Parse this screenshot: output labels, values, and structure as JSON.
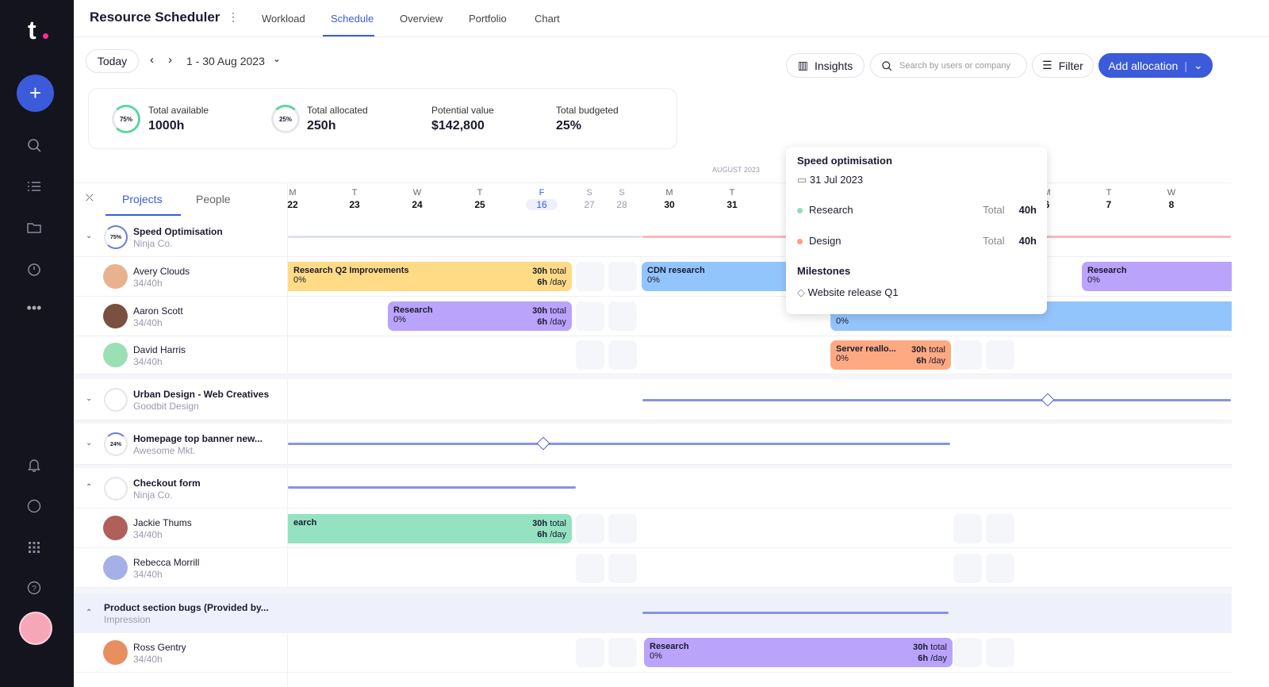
{
  "app": {
    "logo": "t",
    "title": "Resource Scheduler"
  },
  "tabs": [
    {
      "label": "Workload"
    },
    {
      "label": "Schedule",
      "active": true
    },
    {
      "label": "Overview"
    },
    {
      "label": "Portfolio"
    },
    {
      "label": "Chart"
    }
  ],
  "toolbar": {
    "today": "Today",
    "date_range": "1 - 30 Aug 2023",
    "insights": "Insights",
    "search_placeholder": "Search by users or company",
    "filter": "Filter",
    "add_allocation": "Add allocation"
  },
  "stats": [
    {
      "label": "Total available",
      "value": "1000h",
      "ring": "75%"
    },
    {
      "label": "Total allocated",
      "value": "250h",
      "ring": "25%"
    },
    {
      "label": "Potential value",
      "value": "$142,800"
    },
    {
      "label": "Total budgeted",
      "value": "25%"
    }
  ],
  "view_tabs": {
    "projects": "Projects",
    "people": "People"
  },
  "month_label": "AUGUST 2023",
  "days": [
    {
      "d": "M",
      "n": "22"
    },
    {
      "d": "T",
      "n": "23"
    },
    {
      "d": "W",
      "n": "24"
    },
    {
      "d": "T",
      "n": "25"
    },
    {
      "d": "F",
      "n": "16",
      "today": true
    },
    {
      "d": "S",
      "n": "27"
    },
    {
      "d": "S",
      "n": "28"
    },
    {
      "d": "M",
      "n": "30"
    },
    {
      "d": "T",
      "n": "31"
    },
    {
      "d": "M",
      "n": "6"
    },
    {
      "d": "T",
      "n": "7"
    },
    {
      "d": "W",
      "n": "8"
    }
  ],
  "projects": [
    {
      "name": "Speed Optimisation",
      "client": "Ninja Co.",
      "ring": "75%"
    },
    {
      "name": "Urban Design - Web Creatives",
      "client": "Goodbit Design"
    },
    {
      "name": "Homepage top banner new...",
      "client": "Awesome Mkt.",
      "ring": "24%"
    },
    {
      "name": "Checkout form",
      "client": "Ninja Co."
    },
    {
      "name": "Product section bugs (Provided by...",
      "client": "Impression"
    }
  ],
  "people": [
    {
      "name": "Avery Clouds",
      "hours": "34/40h"
    },
    {
      "name": "Aaron Scott",
      "hours": "34/40h"
    },
    {
      "name": "David Harris",
      "hours": "34/40h"
    },
    {
      "name": "Jackie Thums",
      "hours": "34/40h"
    },
    {
      "name": "Rebecca Morrill",
      "hours": "34/40h"
    },
    {
      "name": "Ross Gentry",
      "hours": "34/40h"
    }
  ],
  "bars": {
    "rq2": {
      "title": "Research Q2 Improvements",
      "pct": "0%",
      "total": "30h",
      "total_unit": " total",
      "day": "6h",
      "day_unit": " /day"
    },
    "cdn": {
      "title": "CDN research",
      "pct": "0%"
    },
    "res_avery": {
      "title": "Research",
      "pct": "0%"
    },
    "res_aaron": {
      "title": "Research",
      "pct": "0%",
      "total": "30h",
      "total_unit": " total",
      "day": "6h",
      "day_unit": " /day"
    },
    "blue_aaron": {
      "pct": "0%"
    },
    "server": {
      "title": "Server reallo...",
      "pct": "0%",
      "total": "30h",
      "total_unit": " total",
      "day": "6h",
      "day_unit": " /day"
    },
    "jackie": {
      "title": "earch",
      "total": "30h",
      "total_unit": " total",
      "day": "6h",
      "day_unit": " /day"
    },
    "ross": {
      "title": "Research",
      "pct": "0%",
      "total": "30h",
      "total_unit": " total",
      "day": "6h",
      "day_unit": " /day"
    }
  },
  "popup": {
    "title": "Speed optimisation",
    "date": "31 Jul 2023",
    "items": [
      {
        "name": "Research",
        "label": "Total",
        "value": "40h",
        "color": "#8fdcb8"
      },
      {
        "name": "Design",
        "label": "Total",
        "value": "40h",
        "color": "#ff9f7a"
      }
    ],
    "milestones_title": "Milestones",
    "milestone": "Website release Q1"
  },
  "colors": {
    "accent": "#3b5bdb",
    "sidebar": "#14141f",
    "yellow": "#ffdb86",
    "blue": "#93c5fd",
    "purple": "#b9a3fb",
    "orange": "#ffa982",
    "green": "#95e2c2"
  }
}
